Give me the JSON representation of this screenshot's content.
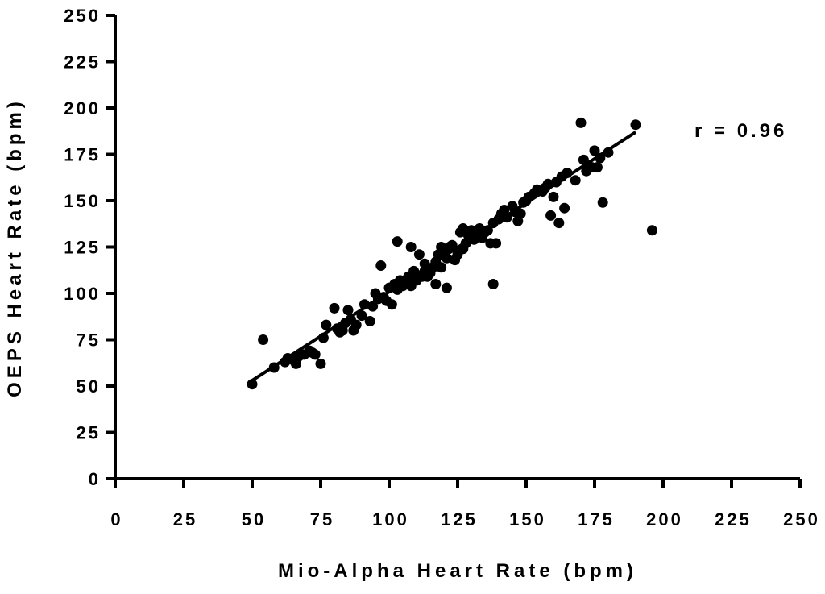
{
  "chart_data": {
    "type": "scatter",
    "xlabel": "Mio-Alpha Heart Rate (bpm)",
    "ylabel": "OEPS Heart Rate (bpm)",
    "xlim": [
      0,
      250
    ],
    "ylim": [
      0,
      250
    ],
    "xticks": [
      "0",
      "25",
      "50",
      "75",
      "100",
      "125",
      "150",
      "175",
      "200",
      "225",
      "250"
    ],
    "yticks": [
      "0",
      "25",
      "50",
      "75",
      "100",
      "125",
      "150",
      "175",
      "200",
      "225",
      "250"
    ],
    "grid": false,
    "annotation": "r = 0.96",
    "marker_color": "#000000",
    "fit_line": {
      "x": [
        50,
        190
      ],
      "y": [
        53,
        187
      ]
    },
    "points": [
      [
        50,
        51
      ],
      [
        54,
        75
      ],
      [
        58,
        60
      ],
      [
        62,
        63
      ],
      [
        63,
        65
      ],
      [
        65,
        64
      ],
      [
        66,
        62
      ],
      [
        67,
        66
      ],
      [
        69,
        67
      ],
      [
        71,
        69
      ],
      [
        72,
        68
      ],
      [
        73,
        67
      ],
      [
        75,
        62
      ],
      [
        76,
        76
      ],
      [
        77,
        83
      ],
      [
        80,
        92
      ],
      [
        81,
        81
      ],
      [
        82,
        79
      ],
      [
        83,
        80
      ],
      [
        84,
        84
      ],
      [
        85,
        91
      ],
      [
        86,
        86
      ],
      [
        87,
        80
      ],
      [
        88,
        83
      ],
      [
        90,
        88
      ],
      [
        91,
        94
      ],
      [
        93,
        85
      ],
      [
        94,
        93
      ],
      [
        95,
        100
      ],
      [
        96,
        97
      ],
      [
        97,
        115
      ],
      [
        98,
        98
      ],
      [
        99,
        96
      ],
      [
        100,
        103
      ],
      [
        101,
        94
      ],
      [
        102,
        105
      ],
      [
        103,
        128
      ],
      [
        103,
        102
      ],
      [
        104,
        107
      ],
      [
        105,
        104
      ],
      [
        106,
        106
      ],
      [
        107,
        109
      ],
      [
        108,
        125
      ],
      [
        108,
        104
      ],
      [
        109,
        112
      ],
      [
        110,
        107
      ],
      [
        111,
        121
      ],
      [
        112,
        109
      ],
      [
        113,
        112
      ],
      [
        113,
        116
      ],
      [
        114,
        109
      ],
      [
        115,
        111
      ],
      [
        116,
        114
      ],
      [
        117,
        105
      ],
      [
        117,
        117
      ],
      [
        118,
        121
      ],
      [
        119,
        114
      ],
      [
        119,
        125
      ],
      [
        120,
        122
      ],
      [
        121,
        103
      ],
      [
        121,
        119
      ],
      [
        122,
        125
      ],
      [
        123,
        126
      ],
      [
        124,
        118
      ],
      [
        125,
        121
      ],
      [
        126,
        133
      ],
      [
        127,
        135
      ],
      [
        127,
        124
      ],
      [
        128,
        127
      ],
      [
        129,
        131
      ],
      [
        130,
        134
      ],
      [
        131,
        129
      ],
      [
        132,
        132
      ],
      [
        133,
        135
      ],
      [
        134,
        130
      ],
      [
        135,
        133
      ],
      [
        136,
        134
      ],
      [
        137,
        127
      ],
      [
        138,
        105
      ],
      [
        138,
        138
      ],
      [
        139,
        127
      ],
      [
        140,
        140
      ],
      [
        141,
        143
      ],
      [
        142,
        145
      ],
      [
        143,
        141
      ],
      [
        145,
        147
      ],
      [
        146,
        144
      ],
      [
        147,
        139
      ],
      [
        148,
        143
      ],
      [
        149,
        149
      ],
      [
        150,
        150
      ],
      [
        151,
        152
      ],
      [
        153,
        154
      ],
      [
        154,
        156
      ],
      [
        156,
        155
      ],
      [
        157,
        157
      ],
      [
        158,
        159
      ],
      [
        159,
        142
      ],
      [
        160,
        152
      ],
      [
        161,
        160
      ],
      [
        162,
        138
      ],
      [
        163,
        163
      ],
      [
        164,
        146
      ],
      [
        165,
        165
      ],
      [
        168,
        161
      ],
      [
        170,
        192
      ],
      [
        171,
        172
      ],
      [
        172,
        166
      ],
      [
        174,
        168
      ],
      [
        175,
        177
      ],
      [
        176,
        168
      ],
      [
        177,
        173
      ],
      [
        178,
        149
      ],
      [
        180,
        176
      ],
      [
        190,
        191
      ],
      [
        196,
        134
      ]
    ]
  }
}
